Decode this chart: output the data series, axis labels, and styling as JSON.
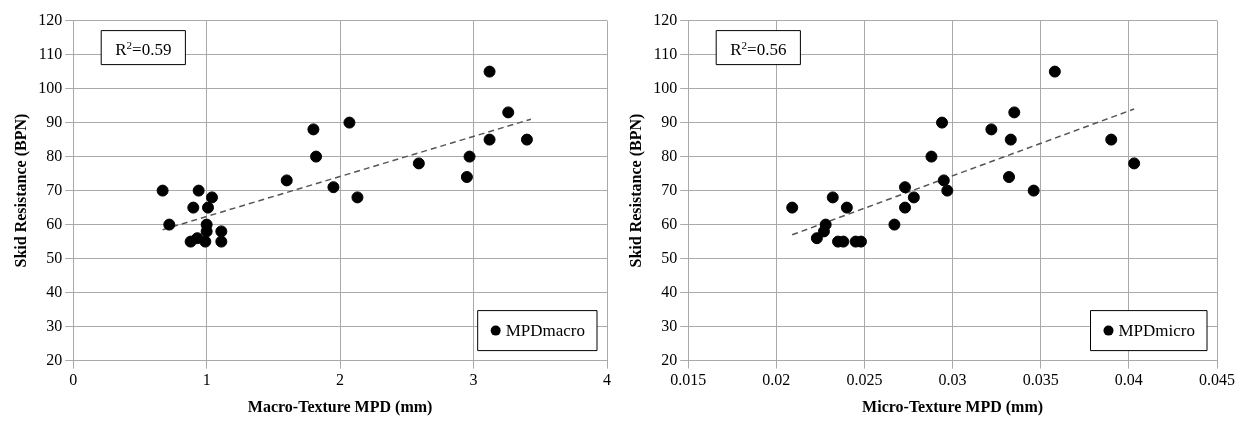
{
  "chart_data": [
    {
      "type": "scatter",
      "xlabel": "Macro-Texture MPD (mm)",
      "ylabel": "Skid Resistance (BPN)",
      "annotations": [
        "R$^{2}$=0.59"
      ],
      "xlim": [
        0,
        4
      ],
      "xticks": [
        0,
        1,
        2,
        3,
        4
      ],
      "ylim": [
        20,
        120
      ],
      "yticks": [
        20,
        30,
        40,
        50,
        60,
        70,
        80,
        90,
        100,
        110,
        120
      ],
      "grid": true,
      "legend": "bottom right",
      "series": [
        {
          "name": "MPDmacro",
          "color": "#000000",
          "marker": "circle",
          "x": [
            0.67,
            0.72,
            0.88,
            0.9,
            0.93,
            0.94,
            0.97,
            0.99,
            1.0,
            1.0,
            1.01,
            1.04,
            1.11,
            1.11,
            1.6,
            1.8,
            1.82,
            1.95,
            2.07,
            2.13,
            2.59,
            2.95,
            2.97,
            3.12,
            3.12,
            3.26,
            3.4
          ],
          "values": [
            70,
            60,
            55,
            65,
            56,
            70,
            null,
            55,
            60,
            58,
            65,
            68,
            58,
            55,
            73,
            88,
            80,
            71,
            90,
            68,
            78,
            74,
            80,
            105,
            85,
            93,
            85
          ]
        },
        {
          "type": "line",
          "color": "#555555",
          "line_style": "dashed",
          "marker": "none",
          "x": [
            0.67,
            3.43
          ],
          "values": [
            58.5,
            91
          ]
        }
      ]
    },
    {
      "type": "scatter",
      "xlabel": "Micro-Texture MPD (mm)",
      "ylabel": "Skid Resistance (BPN)",
      "annotations": [
        "R$^{2}$=0.56"
      ],
      "xlim": [
        0.015,
        0.045
      ],
      "xticks": [
        0.015,
        0.02,
        0.025,
        0.03,
        0.035,
        0.04,
        0.045
      ],
      "ylim": [
        20,
        120
      ],
      "yticks": [
        20,
        30,
        40,
        50,
        60,
        70,
        80,
        90,
        100,
        110,
        120
      ],
      "grid": true,
      "legend": "bottom right",
      "series": [
        {
          "name": "MPDmicro",
          "color": "#000000",
          "marker": "circle",
          "x": [
            0.0209,
            0.0223,
            0.0227,
            0.0228,
            0.0232,
            0.0235,
            0.0238,
            0.024,
            0.0245,
            0.0248,
            0.0267,
            0.0273,
            0.0273,
            0.0278,
            0.0288,
            0.0294,
            0.0295,
            0.0297,
            0.0322,
            0.0333,
            0.0332,
            0.0335,
            0.0346,
            0.0358,
            0.039,
            0.0403
          ],
          "values": [
            65,
            56,
            58,
            60,
            68,
            55,
            55,
            65,
            55,
            55,
            60,
            71,
            65,
            68,
            80,
            90,
            73,
            70,
            88,
            85,
            74,
            93,
            70,
            105,
            85,
            78
          ]
        },
        {
          "type": "line",
          "color": "#555555",
          "line_style": "dashed",
          "marker": "none",
          "x": [
            0.0209,
            0.0403
          ],
          "values": [
            57,
            94
          ]
        }
      ]
    }
  ]
}
